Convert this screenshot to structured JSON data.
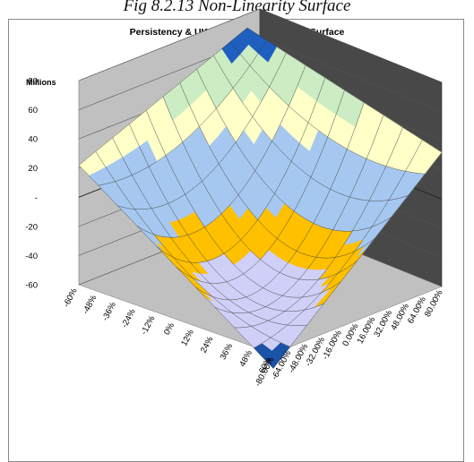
{
  "caption": "Fig 8.2.13 Non-Linearity Surface",
  "chart_data": {
    "type": "surface",
    "title": "Persistency & UK Equities Non-linearity Surface",
    "units_label": "Millions",
    "z_ticks": [
      "80",
      "60",
      "40",
      "20",
      "-",
      "-20",
      "-40",
      "-60"
    ],
    "zlim": [
      -60,
      80
    ],
    "x_axis_ticks": [
      "-60%",
      "-48%",
      "-36%",
      "-24%",
      "-12%",
      "0%",
      "12%",
      "24%",
      "36%",
      "48%",
      "60%"
    ],
    "y_axis_ticks": [
      "-80.00%",
      "-64.00%",
      "-48.00%",
      "-32.00%",
      "-16.00%",
      "0.00%",
      "16.00%",
      "32.00%",
      "48.00%",
      "64.00%",
      "80.00%"
    ],
    "corner_values": {
      "x_-60_y_80": 70,
      "x_60_y_80": 32,
      "x_60_y_-80": -70,
      "x_-60_y_-80": 22
    },
    "center_value": -42,
    "band_colors": [
      "#1a53a8",
      "#cfcff7",
      "#ffc000",
      "#a6c8f0",
      "#ffffc8",
      "#ccecc4",
      "#1f5fbf"
    ],
    "walls": {
      "side_wall": "#c0c0c0",
      "back_wall": "#484848",
      "floor": "#c0c0c0"
    },
    "grid": true
  }
}
